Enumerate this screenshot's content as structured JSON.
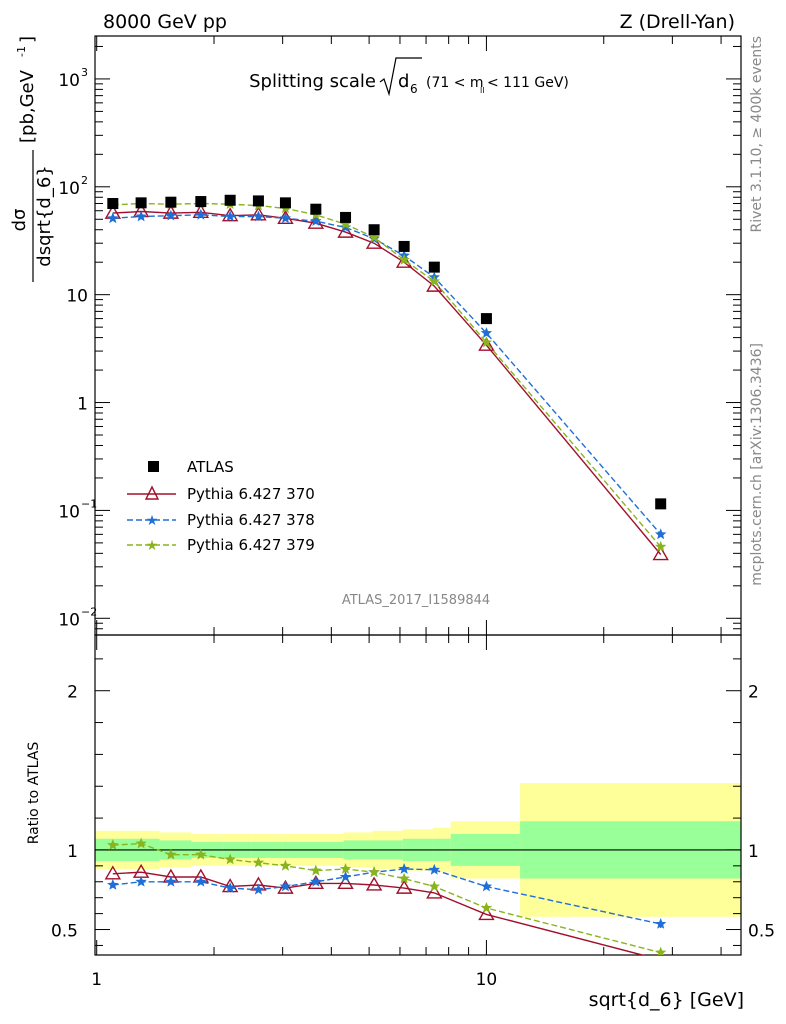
{
  "header": {
    "left": "8000 GeV pp",
    "right": "Z (Drell-Yan)"
  },
  "chart_data": {
    "type": "line",
    "title": "Splitting scale",
    "title_symbol": "d",
    "title_symbol_sub": "6",
    "title_range_prefix": "(71 < m",
    "title_range_sub": "ll",
    "title_range_suffix": " < 111 GeV)",
    "analysis": "ATLAS_2017_I1589844",
    "side_label_top": "Rivet 3.1.10, ≥ 400k events",
    "side_label_bottom": "mcplots.cern.ch [arXiv:1306.3436]",
    "ylabel_num": "dσ",
    "ylabel_den": "dsqrt{d_6}",
    "ylabel_units": "[pb,GeV",
    "ylabel_units_sup": "-1",
    "ylabel_units_end": "]",
    "xlabel": "sqrt{d_6} [GeV]",
    "ratio_ylabel": "Ratio to ATLAS",
    "xscale": "log",
    "yscale": "log",
    "xlim": [
      0.99,
      45
    ],
    "ylim": [
      0.007,
      2500
    ],
    "ratio_ylim": [
      0.34,
      2.35
    ],
    "x_ticks": [
      {
        "value": 1,
        "label": "1"
      },
      {
        "value": 10,
        "label": "10"
      }
    ],
    "y_ticks": [
      {
        "value": 0.01,
        "base": "10",
        "exp": "−2"
      },
      {
        "value": 0.1,
        "base": "10",
        "exp": "−1"
      },
      {
        "value": 1,
        "base": "1",
        "exp": ""
      },
      {
        "value": 10,
        "base": "10",
        "exp": ""
      },
      {
        "value": 100,
        "base": "10",
        "exp": "2"
      },
      {
        "value": 1000,
        "base": "10",
        "exp": "3"
      }
    ],
    "ratio_ticks": [
      {
        "value": 0.5,
        "label": "0.5"
      },
      {
        "value": 1,
        "label": "1"
      },
      {
        "value": 2,
        "label": "2"
      }
    ],
    "bands": [
      {
        "x0": 0.99,
        "x1": 1.2,
        "stat": 0.07,
        "total": 0.12
      },
      {
        "x0": 1.2,
        "x1": 1.45,
        "stat": 0.07,
        "total": 0.12
      },
      {
        "x0": 1.45,
        "x1": 1.75,
        "stat": 0.06,
        "total": 0.11
      },
      {
        "x0": 1.75,
        "x1": 2.1,
        "stat": 0.05,
        "total": 0.1
      },
      {
        "x0": 2.1,
        "x1": 2.5,
        "stat": 0.05,
        "total": 0.1
      },
      {
        "x0": 2.5,
        "x1": 3.0,
        "stat": 0.05,
        "total": 0.1
      },
      {
        "x0": 3.0,
        "x1": 3.6,
        "stat": 0.05,
        "total": 0.1
      },
      {
        "x0": 3.6,
        "x1": 4.3,
        "stat": 0.05,
        "total": 0.1
      },
      {
        "x0": 4.3,
        "x1": 5.1,
        "stat": 0.06,
        "total": 0.11
      },
      {
        "x0": 5.1,
        "x1": 6.1,
        "stat": 0.06,
        "total": 0.12
      },
      {
        "x0": 6.1,
        "x1": 7.3,
        "stat": 0.07,
        "total": 0.13
      },
      {
        "x0": 7.3,
        "x1": 8.1,
        "stat": 0.07,
        "total": 0.14
      },
      {
        "x0": 8.1,
        "x1": 12.2,
        "stat": 0.1,
        "total": 0.18
      },
      {
        "x0": 12.2,
        "x1": 45,
        "stat": 0.18,
        "total": 0.42
      }
    ],
    "x": [
      1.1,
      1.3,
      1.55,
      1.85,
      2.2,
      2.6,
      3.05,
      3.65,
      4.35,
      5.15,
      6.15,
      7.35,
      10.0,
      28.0
    ],
    "data": {
      "name": "ATLAS",
      "color": "#000000",
      "values": [
        70,
        71,
        72,
        73,
        75,
        74,
        71,
        62,
        52,
        40,
        28,
        18,
        6.0,
        0.115
      ]
    },
    "series": [
      {
        "name": "Pythia 6.427 370",
        "color": "#a0102c",
        "dash": "",
        "marker": "triangle-open",
        "values": [
          57,
          59,
          57,
          58,
          54,
          55,
          51,
          46,
          38,
          30,
          20,
          12,
          3.4,
          0.039
        ],
        "ratio": [
          0.85,
          0.86,
          0.83,
          0.83,
          0.77,
          0.78,
          0.76,
          0.79,
          0.79,
          0.78,
          0.76,
          0.73,
          0.595,
          0.31
        ]
      },
      {
        "name": "Pythia 6.427 378",
        "color": "#1f6fd6",
        "dash": "6,3",
        "marker": "star",
        "values": [
          51,
          53,
          54,
          55,
          53,
          53,
          51,
          48,
          42,
          33,
          23,
          14.5,
          4.4,
          0.06
        ],
        "ratio": [
          0.78,
          0.8,
          0.8,
          0.8,
          0.76,
          0.75,
          0.77,
          0.8,
          0.83,
          0.86,
          0.88,
          0.875,
          0.77,
          0.535
        ]
      },
      {
        "name": "Pythia 6.427 379",
        "color": "#8ab41e",
        "dash": "6,3",
        "marker": "star",
        "values": [
          68,
          70,
          69,
          70,
          69,
          67,
          63,
          55,
          45,
          34,
          21,
          13.3,
          3.6,
          0.046
        ],
        "ratio": [
          1.03,
          1.04,
          0.97,
          0.97,
          0.94,
          0.92,
          0.9,
          0.87,
          0.88,
          0.86,
          0.82,
          0.77,
          0.635,
          0.355
        ]
      }
    ],
    "legend_position": "lower-left",
    "colors": {
      "band_stat": "#99ff99",
      "band_total": "#ffff99"
    }
  }
}
